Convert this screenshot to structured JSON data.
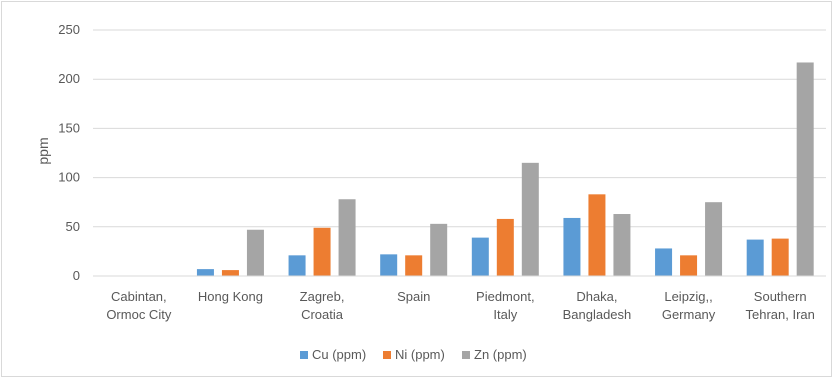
{
  "chart_data": {
    "type": "bar",
    "title": "",
    "xlabel": "",
    "ylabel": "ppm",
    "ylim": [
      0,
      250
    ],
    "yticks": [
      0,
      50,
      100,
      150,
      200,
      250
    ],
    "grid": true,
    "legend_position": "bottom",
    "categories": [
      [
        "Cabintan,",
        "Ormoc City"
      ],
      [
        "Hong Kong"
      ],
      [
        "Zagreb,",
        "Croatia"
      ],
      [
        "Spain"
      ],
      [
        "Piedmont,",
        "Italy"
      ],
      [
        "Dhaka,",
        "Bangladesh"
      ],
      [
        "Leipzig,,",
        "Germany"
      ],
      [
        "Southern",
        "Tehran, Iran"
      ]
    ],
    "series": [
      {
        "name": "Cu (ppm)",
        "color": "#5B9BD5",
        "values": [
          0,
          7,
          21,
          22,
          39,
          59,
          28,
          37
        ]
      },
      {
        "name": "Ni (ppm)",
        "color": "#ED7D31",
        "values": [
          0,
          6,
          49,
          21,
          58,
          83,
          21,
          38
        ]
      },
      {
        "name": "Zn (ppm)",
        "color": "#A5A5A5",
        "values": [
          0,
          47,
          78,
          53,
          115,
          63,
          75,
          217
        ]
      }
    ]
  }
}
